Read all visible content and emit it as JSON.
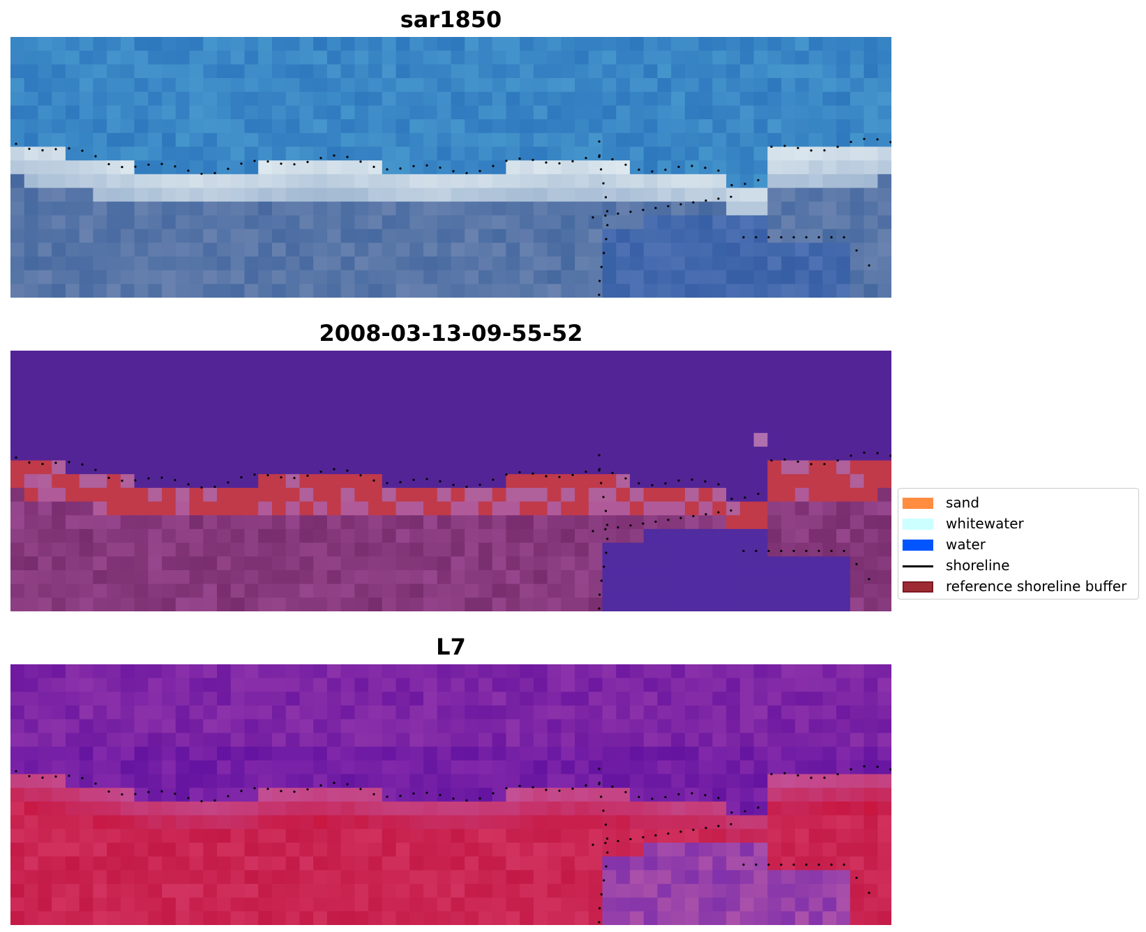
{
  "panels": [
    {
      "title": "sar1850",
      "kind": "sar-rgb"
    },
    {
      "title": "2008-03-13-09-55-52",
      "kind": "classified"
    },
    {
      "title": "L7",
      "kind": "false-color"
    }
  ],
  "legend": {
    "items": [
      {
        "label": "sand",
        "color": "#ff8c3f",
        "type": "patch"
      },
      {
        "label": "whitewater",
        "color": "#ccffff",
        "type": "patch"
      },
      {
        "label": "water",
        "color": "#0055ff",
        "type": "patch"
      },
      {
        "label": "shoreline",
        "color": "#000000",
        "type": "line"
      },
      {
        "label": "reference shoreline buffer",
        "color": "#9e2a33",
        "edge": "#7a1a22",
        "type": "patch"
      }
    ]
  }
}
